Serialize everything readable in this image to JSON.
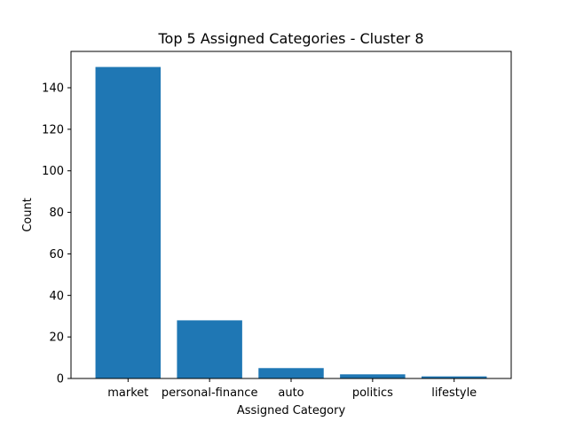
{
  "chart_data": {
    "type": "bar",
    "title": "Top 5 Assigned Categories - Cluster 8",
    "xlabel": "Assigned Category",
    "ylabel": "Count",
    "categories": [
      "market",
      "personal-finance",
      "auto",
      "politics",
      "lifestyle"
    ],
    "values": [
      150,
      28,
      5,
      2,
      1
    ],
    "ylim": [
      0,
      157.5
    ],
    "yticks": [
      0,
      20,
      40,
      60,
      80,
      100,
      120,
      140
    ],
    "grid": false,
    "bar_color": "#1f77b4"
  }
}
